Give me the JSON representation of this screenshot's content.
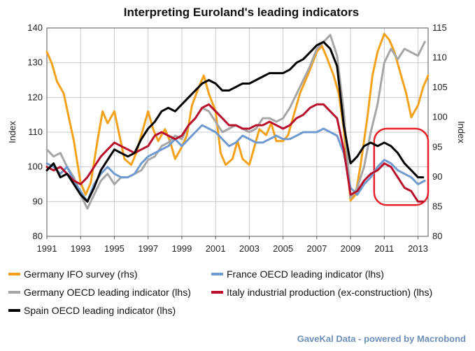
{
  "chart_data": {
    "type": "line",
    "title": "Interpreting Euroland's leading indicators",
    "ylabel_left": "Index",
    "ylabel_right": "Index",
    "x_range": [
      1991,
      2013.6
    ],
    "ylim_left": [
      80,
      140
    ],
    "ylim_right": [
      80,
      115
    ],
    "xticks": [
      1991,
      1993,
      1995,
      1997,
      1999,
      2001,
      2003,
      2005,
      2007,
      2009,
      2011,
      2013
    ],
    "yticks_left": [
      80,
      90,
      100,
      110,
      120,
      130,
      140
    ],
    "yticks_right": [
      80,
      85,
      90,
      95,
      100,
      105,
      110,
      115
    ],
    "grid": true,
    "legend_position": "bottom",
    "credit": "GaveKal Data - powered by Macrobond",
    "highlight": {
      "shape": "rounded-rectangle",
      "color": "#e8202a",
      "x_range": [
        2010.4,
        2013.6
      ],
      "y_range_left": [
        89,
        111
      ]
    },
    "series": [
      {
        "name": "Germany  IFO survey  (rhs)",
        "axis": "right",
        "color": "#f5a21a",
        "x": [
          1991.0,
          1991.3,
          1991.6,
          1992.0,
          1992.3,
          1992.6,
          1993.0,
          1993.3,
          1993.6,
          1994.0,
          1994.3,
          1994.6,
          1995.0,
          1995.3,
          1995.6,
          1996.0,
          1996.3,
          1996.6,
          1997.0,
          1997.3,
          1997.6,
          1998.0,
          1998.3,
          1998.6,
          1999.0,
          1999.3,
          1999.6,
          2000.0,
          2000.3,
          2000.6,
          2001.0,
          2001.3,
          2001.6,
          2002.0,
          2002.3,
          2002.6,
          2003.0,
          2003.3,
          2003.6,
          2004.0,
          2004.3,
          2004.6,
          2005.0,
          2005.3,
          2005.6,
          2006.0,
          2006.3,
          2006.6,
          2007.0,
          2007.3,
          2007.6,
          2008.0,
          2008.3,
          2008.6,
          2009.0,
          2009.3,
          2009.6,
          2010.0,
          2010.3,
          2010.6,
          2011.0,
          2011.3,
          2011.6,
          2012.0,
          2012.3,
          2012.6,
          2013.0,
          2013.3,
          2013.6
        ],
        "values": [
          111,
          109,
          106,
          104,
          100,
          96,
          89,
          87,
          89,
          96,
          101,
          99,
          101,
          97,
          93,
          92,
          94,
          97,
          101,
          98,
          96,
          98,
          96,
          93,
          95,
          97,
          102,
          105,
          107,
          104,
          101,
          94,
          92,
          93,
          96,
          93,
          92,
          95,
          98,
          97,
          99,
          96,
          96,
          97,
          100,
          104,
          106,
          108,
          111,
          112,
          110,
          107,
          104,
          98,
          86,
          87,
          92,
          100,
          107,
          111,
          114,
          113,
          111,
          107,
          104,
          100,
          102,
          105,
          107
        ]
      },
      {
        "name": "France OECD leading indicator (lhs)",
        "axis": "left",
        "color": "#6f9bd1",
        "x": [
          1991.0,
          1991.4,
          1991.8,
          1992.2,
          1992.6,
          1993.0,
          1993.4,
          1993.8,
          1994.2,
          1994.6,
          1995.0,
          1995.4,
          1995.8,
          1996.2,
          1996.6,
          1997.0,
          1997.4,
          1997.8,
          1998.2,
          1998.6,
          1999.0,
          1999.4,
          1999.8,
          2000.2,
          2000.6,
          2001.0,
          2001.4,
          2001.8,
          2002.2,
          2002.6,
          2003.0,
          2003.4,
          2003.8,
          2004.2,
          2004.6,
          2005.0,
          2005.4,
          2005.8,
          2006.2,
          2006.6,
          2007.0,
          2007.4,
          2007.8,
          2008.2,
          2008.6,
          2009.0,
          2009.4,
          2009.8,
          2010.2,
          2010.6,
          2011.0,
          2011.4,
          2011.8,
          2012.2,
          2012.6,
          2013.0,
          2013.4
        ],
        "values": [
          101,
          100,
          98,
          100,
          96,
          93,
          90,
          95,
          98,
          100,
          98,
          97,
          97,
          98,
          101,
          103,
          104,
          105,
          106,
          108,
          106,
          108,
          110,
          112,
          111,
          110,
          108,
          106,
          107,
          109,
          108,
          107,
          107,
          108,
          109,
          108,
          108,
          109,
          110,
          110,
          110,
          111,
          110,
          109,
          104,
          94,
          92,
          95,
          97,
          100,
          102,
          101,
          99,
          98,
          97,
          95,
          96
        ]
      },
      {
        "name": "Germany OECD leading indicator (lhs)",
        "axis": "left",
        "color": "#a6a6a6",
        "x": [
          1991.0,
          1991.4,
          1991.8,
          1992.2,
          1992.6,
          1993.0,
          1993.4,
          1993.8,
          1994.2,
          1994.6,
          1995.0,
          1995.4,
          1995.8,
          1996.2,
          1996.6,
          1997.0,
          1997.4,
          1997.8,
          1998.2,
          1998.6,
          1999.0,
          1999.4,
          1999.8,
          2000.2,
          2000.6,
          2001.0,
          2001.4,
          2001.8,
          2002.2,
          2002.6,
          2003.0,
          2003.4,
          2003.8,
          2004.2,
          2004.6,
          2005.0,
          2005.4,
          2005.8,
          2006.2,
          2006.6,
          2007.0,
          2007.4,
          2007.8,
          2008.2,
          2008.6,
          2009.0,
          2009.4,
          2009.8,
          2010.2,
          2010.6,
          2011.0,
          2011.4,
          2011.8,
          2012.2,
          2012.6,
          2013.0,
          2013.4
        ],
        "values": [
          105,
          103,
          104,
          100,
          97,
          92,
          88,
          92,
          96,
          98,
          95,
          97,
          97,
          98,
          99,
          102,
          103,
          106,
          107,
          109,
          108,
          112,
          114,
          117,
          116,
          113,
          110,
          111,
          112,
          111,
          110,
          111,
          114,
          114,
          113,
          114,
          117,
          121,
          125,
          129,
          134,
          136,
          138,
          132,
          116,
          91,
          94,
          100,
          110,
          118,
          130,
          134,
          131,
          134,
          133,
          132,
          136
        ]
      },
      {
        "name": "Italy industrial production (ex-construction) (lhs)",
        "axis": "left",
        "color": "#b8102c",
        "x": [
          1991.0,
          1991.4,
          1991.8,
          1992.2,
          1992.6,
          1993.0,
          1993.4,
          1993.8,
          1994.2,
          1994.6,
          1995.0,
          1995.4,
          1995.8,
          1996.2,
          1996.6,
          1997.0,
          1997.4,
          1997.8,
          1998.2,
          1998.6,
          1999.0,
          1999.4,
          1999.8,
          2000.2,
          2000.6,
          2001.0,
          2001.4,
          2001.8,
          2002.2,
          2002.6,
          2003.0,
          2003.4,
          2003.8,
          2004.2,
          2004.6,
          2005.0,
          2005.4,
          2005.8,
          2006.2,
          2006.6,
          2007.0,
          2007.4,
          2007.8,
          2008.2,
          2008.6,
          2009.0,
          2009.4,
          2009.8,
          2010.2,
          2010.6,
          2011.0,
          2011.4,
          2011.8,
          2012.2,
          2012.6,
          2013.0,
          2013.3
        ],
        "values": [
          100,
          99,
          100,
          98,
          96,
          95,
          97,
          100,
          103,
          105,
          107,
          106,
          105,
          104,
          105,
          106,
          109,
          110,
          109,
          108,
          109,
          112,
          114,
          117,
          118,
          116,
          114,
          112,
          112,
          111,
          111,
          112,
          112,
          113,
          112,
          111,
          112,
          114,
          115,
          117,
          118,
          118,
          116,
          114,
          105,
          92,
          93,
          96,
          98,
          99,
          101,
          100,
          97,
          94,
          93,
          90,
          90
        ]
      },
      {
        "name": "Spain OECD leading indicator (lhs)",
        "axis": "left",
        "color": "#000000",
        "x": [
          1991.0,
          1991.4,
          1991.8,
          1992.2,
          1992.6,
          1993.0,
          1993.4,
          1993.8,
          1994.2,
          1994.6,
          1995.0,
          1995.4,
          1995.8,
          1996.2,
          1996.6,
          1997.0,
          1997.4,
          1997.8,
          1998.2,
          1998.6,
          1999.0,
          1999.4,
          1999.8,
          2000.2,
          2000.6,
          2001.0,
          2001.4,
          2001.8,
          2002.2,
          2002.6,
          2003.0,
          2003.4,
          2003.8,
          2004.2,
          2004.6,
          2005.0,
          2005.4,
          2005.8,
          2006.2,
          2006.6,
          2007.0,
          2007.4,
          2007.8,
          2008.2,
          2008.6,
          2009.0,
          2009.4,
          2009.8,
          2010.2,
          2010.6,
          2011.0,
          2011.4,
          2011.8,
          2012.2,
          2012.6,
          2013.0,
          2013.3
        ],
        "values": [
          99,
          101,
          97,
          98,
          95,
          92,
          90,
          94,
          99,
          102,
          105,
          104,
          103,
          104,
          108,
          111,
          113,
          116,
          117,
          116,
          118,
          120,
          122,
          124,
          125,
          124,
          122,
          122,
          123,
          124,
          124,
          125,
          126,
          127,
          127,
          127,
          128,
          130,
          131,
          133,
          135,
          136,
          134,
          129,
          112,
          101,
          103,
          106,
          107,
          106,
          107,
          106,
          104,
          101,
          99,
          97,
          97
        ]
      }
    ]
  }
}
